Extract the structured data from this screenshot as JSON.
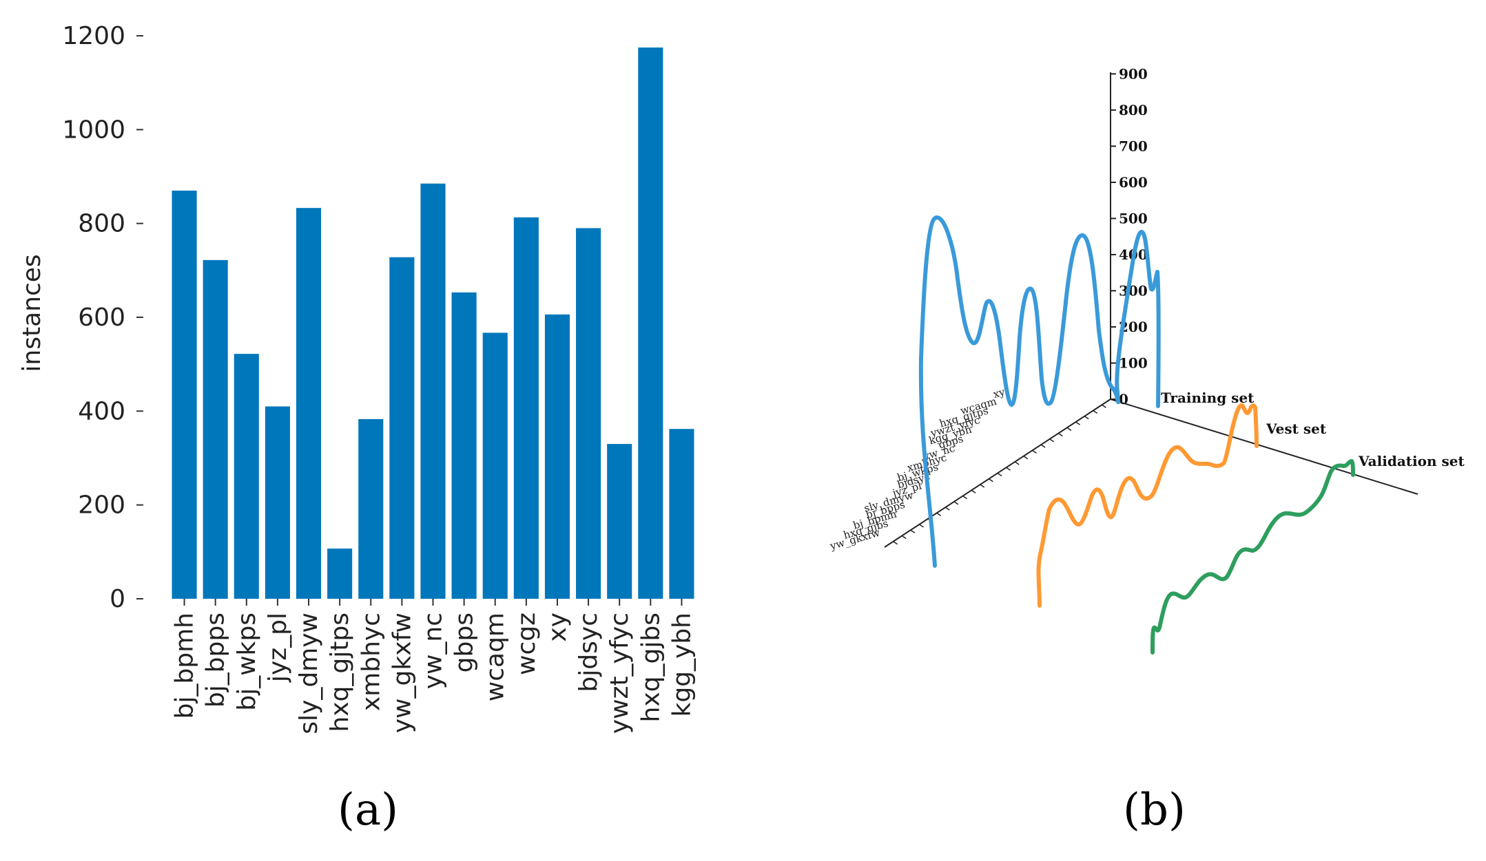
{
  "chart_data": [
    {
      "type": "bar",
      "panel": "(a)",
      "title": "",
      "xlabel": "",
      "ylabel": "instances",
      "ylim": [
        0,
        1200
      ],
      "yticks": [
        0,
        200,
        400,
        600,
        800,
        1000,
        1200
      ],
      "color": "#0077bb",
      "categories": [
        "bj_bpmh",
        "bj_bpps",
        "bj_wkps",
        "jyz_pl",
        "sly_dmyw",
        "hxq_gjtps",
        "xmbhyc",
        "yw_gkxfw",
        "yw_nc",
        "gbps",
        "wcaqm",
        "wcgz",
        "xy",
        "bjdsyc",
        "ywzt_yfyc",
        "hxq_gjbs",
        "kgg_ybh"
      ],
      "values": [
        870,
        722,
        522,
        410,
        833,
        107,
        383,
        728,
        885,
        653,
        567,
        813,
        606,
        790,
        330,
        1175,
        362
      ]
    },
    {
      "type": "line",
      "panel": "(b)",
      "title": "",
      "zticks": [
        0,
        100,
        200,
        300,
        400,
        500,
        600,
        700,
        800,
        900
      ],
      "depth_labels": [
        "Training set",
        "Vest set",
        "Validation set"
      ],
      "category_labels": [
        "xy",
        "wcaqm",
        "hxq_gjtps",
        "ywzt_yfyc",
        "kgg_ybh",
        "gbps",
        "yw_nc",
        "xmbhyc",
        "bj_wkps",
        "bjdsyc",
        "jyz_pl",
        "sly_dmyw",
        "bj_bpps",
        "bj_bpmh",
        "hxq_gjbs",
        "yw_gkxfw"
      ],
      "series": [
        {
          "name": "Training set",
          "color": "#3a9ad9"
        },
        {
          "name": "Vest set",
          "color": "#ff9933"
        },
        {
          "name": "Validation set",
          "color": "#2e9e5e"
        }
      ]
    }
  ],
  "panel_labels": {
    "a": "(a)",
    "b": "(b)"
  }
}
